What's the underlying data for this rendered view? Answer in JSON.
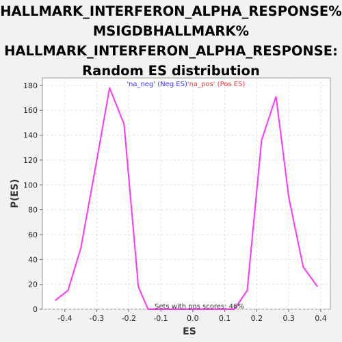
{
  "chart_data": {
    "type": "line",
    "title_lines": [
      "HALLMARK_INTERFERON_ALPHA_RESPONSE%",
      "MSIGDBHALLMARK%",
      "HALLMARK_INTERFERON_ALPHA_RESPONSE:",
      "Random ES distribution"
    ],
    "xlabel": "ES",
    "ylabel": "P(ES)",
    "xlim": [
      -0.47,
      0.43
    ],
    "ylim": [
      0,
      186
    ],
    "xticks": [
      -0.4,
      -0.3,
      -0.2,
      -0.1,
      0.0,
      0.1,
      0.2,
      0.3,
      0.4
    ],
    "xtick_labels": [
      "-0.4",
      "-0.3",
      "-0.2",
      "-0.1",
      "0.0",
      "0.1",
      "0.2",
      "0.3",
      "0.4"
    ],
    "yticks": [
      0,
      20,
      40,
      60,
      80,
      100,
      120,
      140,
      160,
      180
    ],
    "ytick_labels": [
      "0",
      "20",
      "40",
      "60",
      "80",
      "100",
      "120",
      "140",
      "160",
      "180"
    ],
    "grid": true,
    "legend": {
      "placement": "top-center",
      "entries": [
        {
          "label": "'na_neg' (Neg ES)",
          "color": "#3333ff"
        },
        {
          "label": "'na_pos' (Pos ES)",
          "color": "#ff3333"
        }
      ]
    },
    "annotation": "Sets with pos scores: 46%",
    "series": [
      {
        "color": "#ff33ff",
        "x": [
          -0.43,
          -0.39,
          -0.35,
          -0.3,
          -0.26,
          -0.215,
          -0.17,
          -0.14,
          -0.1,
          0.13,
          0.17,
          0.215,
          0.26,
          0.3,
          0.345,
          0.39
        ],
        "y": [
          7,
          15,
          49,
          120,
          178,
          149,
          18,
          0,
          0,
          0,
          15,
          136,
          171,
          90,
          34,
          18
        ]
      }
    ],
    "colors": {
      "line": "#ff33ff",
      "plot_bg": "#ffffff",
      "page_bg": "#f2f2f2",
      "grid": "#e0e0e0"
    }
  }
}
